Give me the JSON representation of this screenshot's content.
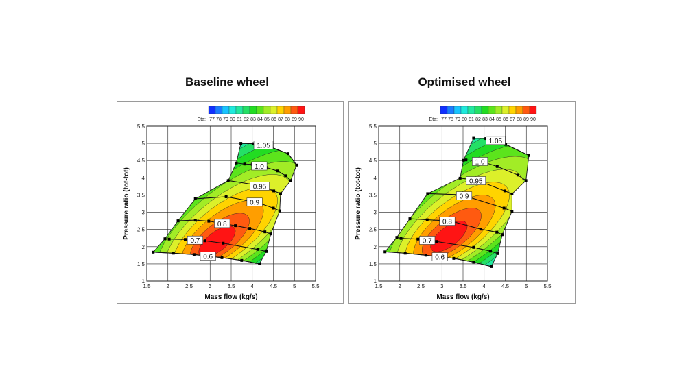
{
  "chart_data": [
    {
      "type": "contour",
      "title": "Baseline wheel",
      "xlabel": "Mass flow (kg/s)",
      "ylabel": "Pressure ratio (tot-tot)",
      "xlim": [
        1.5,
        5.5
      ],
      "ylim": [
        1,
        5.5
      ],
      "xticks": [
        "1.5",
        "2",
        "2.5",
        "3",
        "3.5",
        "4",
        "4.5",
        "5",
        "5.5"
      ],
      "yticks": [
        "1",
        "1.5",
        "2",
        "2.5",
        "3",
        "3.5",
        "4",
        "4.5",
        "5",
        "5.5"
      ],
      "grid": true,
      "colorbar": {
        "label": "Eta:",
        "levels": [
          "77",
          "78",
          "79",
          "80",
          "81",
          "82",
          "83",
          "84",
          "85",
          "86",
          "87",
          "88",
          "89",
          "90"
        ],
        "placement": "top"
      },
      "efficiency_peak": [
        3.1,
        2.05
      ],
      "speed_lines": [
        {
          "label": "0.6",
          "points": [
            [
              1.65,
              1.84
            ],
            [
              2.13,
              1.81
            ],
            [
              2.62,
              1.77
            ],
            [
              3.28,
              1.68
            ],
            [
              3.75,
              1.6
            ],
            [
              4.17,
              1.5
            ]
          ]
        },
        {
          "label": "0.7",
          "points": [
            [
              1.93,
              2.23
            ],
            [
              2.03,
              2.22
            ],
            [
              2.41,
              2.21
            ],
            [
              2.88,
              2.17
            ],
            [
              3.31,
              2.1
            ],
            [
              4.13,
              1.92
            ],
            [
              4.33,
              1.86
            ]
          ]
        },
        {
          "label": "0.8",
          "points": [
            [
              2.24,
              2.75
            ],
            [
              2.65,
              2.77
            ],
            [
              2.97,
              2.74
            ],
            [
              3.6,
              2.61
            ],
            [
              3.94,
              2.53
            ],
            [
              4.3,
              2.43
            ],
            [
              4.44,
              2.37
            ]
          ]
        },
        {
          "label": "0.9",
          "points": [
            [
              2.65,
              3.39
            ],
            [
              3.38,
              3.45
            ],
            [
              3.93,
              3.33
            ],
            [
              4.18,
              3.26
            ],
            [
              4.5,
              3.12
            ],
            [
              4.65,
              3.04
            ]
          ]
        },
        {
          "label": "0.95",
          "points": [
            [
              3.43,
              3.92
            ],
            [
              4.1,
              3.79
            ],
            [
              4.25,
              3.73
            ],
            [
              4.51,
              3.62
            ],
            [
              4.67,
              3.54
            ]
          ]
        },
        {
          "label": "1.0",
          "points": [
            [
              3.62,
              4.43
            ],
            [
              3.82,
              4.4
            ],
            [
              4.0,
              4.39
            ],
            [
              4.33,
              4.3
            ],
            [
              4.6,
              4.2
            ],
            [
              4.79,
              4.06
            ],
            [
              4.91,
              3.92
            ]
          ]
        },
        {
          "label": "1.05",
          "points": [
            [
              3.73,
              5.0
            ],
            [
              4.02,
              4.99
            ],
            [
              4.19,
              4.97
            ],
            [
              4.34,
              4.94
            ],
            [
              4.85,
              4.7
            ],
            [
              5.05,
              4.37
            ]
          ]
        }
      ]
    },
    {
      "type": "contour",
      "title": "Optimised wheel",
      "xlabel": "Mass flow (kg/s)",
      "ylabel": "Pressure ratio (tot-tot)",
      "xlim": [
        1.5,
        5.5
      ],
      "ylim": [
        1,
        5.5
      ],
      "xticks": [
        "1.5",
        "2",
        "2.5",
        "3",
        "3.5",
        "4",
        "4.5",
        "5",
        "5.5"
      ],
      "yticks": [
        "1",
        "1.5",
        "2",
        "2.5",
        "3",
        "3.5",
        "4",
        "4.5",
        "5",
        "5.5"
      ],
      "grid": true,
      "colorbar": {
        "label": "Eta:",
        "levels": [
          "77",
          "78",
          "79",
          "80",
          "81",
          "82",
          "83",
          "84",
          "85",
          "86",
          "87",
          "88",
          "89",
          "90"
        ],
        "placement": "top"
      },
      "efficiency_peak": [
        3.1,
        2.2
      ],
      "speed_lines": [
        {
          "label": "0.6",
          "points": [
            [
              1.65,
              1.85
            ],
            [
              2.13,
              1.81
            ],
            [
              2.62,
              1.75
            ],
            [
              3.28,
              1.66
            ],
            [
              3.75,
              1.55
            ],
            [
              4.17,
              1.42
            ]
          ]
        },
        {
          "label": "0.7",
          "points": [
            [
              1.93,
              2.27
            ],
            [
              2.03,
              2.24
            ],
            [
              2.43,
              2.22
            ],
            [
              2.87,
              2.15
            ],
            [
              3.75,
              1.98
            ],
            [
              4.15,
              1.87
            ],
            [
              4.32,
              1.8
            ]
          ]
        },
        {
          "label": "0.8",
          "points": [
            [
              2.24,
              2.81
            ],
            [
              2.65,
              2.78
            ],
            [
              2.97,
              2.76
            ],
            [
              3.28,
              2.72
            ],
            [
              3.92,
              2.51
            ],
            [
              4.3,
              2.42
            ],
            [
              4.43,
              2.35
            ]
          ]
        },
        {
          "label": "0.9",
          "points": [
            [
              2.66,
              3.54
            ],
            [
              3.41,
              3.51
            ],
            [
              3.64,
              3.44
            ],
            [
              4.47,
              3.12
            ],
            [
              4.66,
              3.03
            ]
          ]
        },
        {
          "label": "0.95",
          "points": [
            [
              3.43,
              3.99
            ],
            [
              3.68,
              3.95
            ],
            [
              3.93,
              3.88
            ],
            [
              4.49,
              3.62
            ],
            [
              4.66,
              3.53
            ]
          ]
        },
        {
          "label": "1.0",
          "points": [
            [
              3.51,
              4.51
            ],
            [
              3.57,
              4.52
            ],
            [
              3.8,
              4.5
            ],
            [
              4.0,
              4.45
            ],
            [
              4.31,
              4.33
            ],
            [
              4.8,
              4.08
            ],
            [
              4.99,
              3.92
            ]
          ]
        },
        {
          "label": "1.05",
          "points": [
            [
              3.75,
              5.15
            ],
            [
              4.04,
              5.14
            ],
            [
              4.2,
              5.11
            ],
            [
              4.34,
              5.06
            ],
            [
              4.51,
              4.97
            ],
            [
              5.06,
              4.65
            ]
          ]
        }
      ]
    }
  ],
  "colormap": [
    "#1030ff",
    "#1a7cff",
    "#18c4ff",
    "#1eeadc",
    "#22e8a0",
    "#24e066",
    "#22dc22",
    "#5ce41c",
    "#a2ec26",
    "#dcf02a",
    "#ffd400",
    "#ff9e00",
    "#ff5a10",
    "#ff1414"
  ]
}
